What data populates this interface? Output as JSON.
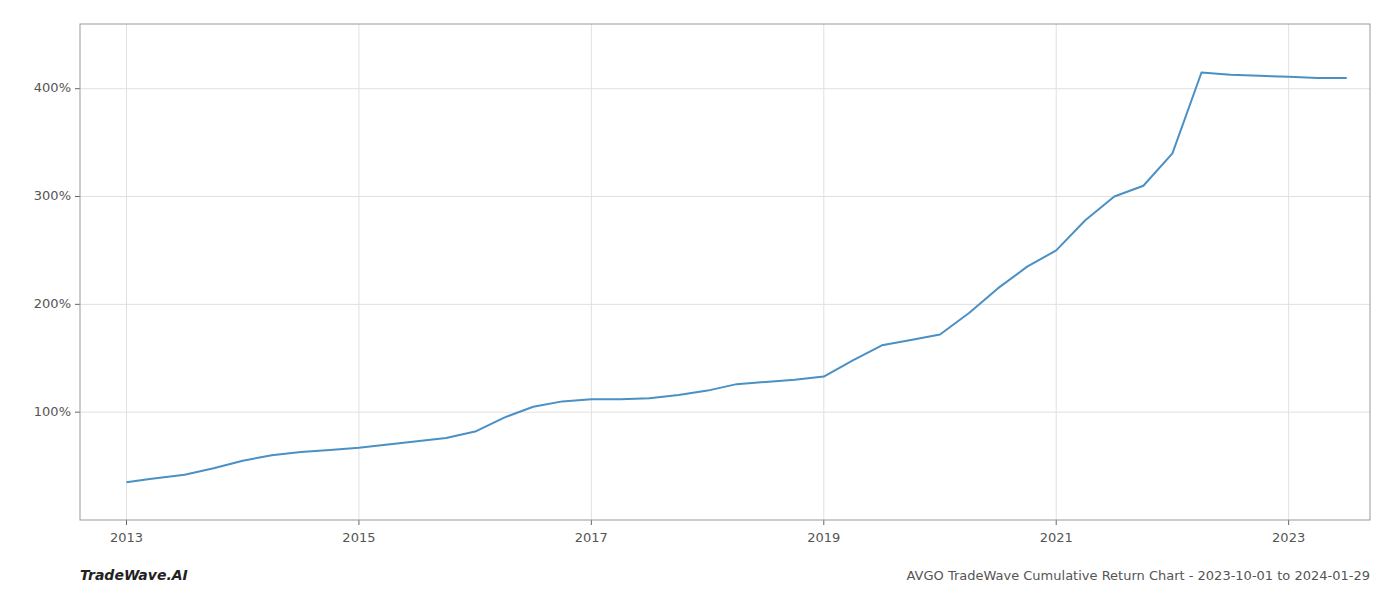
{
  "chart_data": {
    "type": "line",
    "title": "AVGO TradeWave Cumulative Return Chart - 2023-10-01 to 2024-01-29",
    "annotations": [
      "TradeWave.AI"
    ],
    "color": "#4a90c4",
    "grid": true,
    "x": [
      2013.0,
      2013.2,
      2013.5,
      2013.75,
      2014.0,
      2014.25,
      2014.5,
      2014.75,
      2015.0,
      2015.25,
      2015.5,
      2015.75,
      2016.0,
      2016.25,
      2016.5,
      2016.75,
      2017.0,
      2017.25,
      2017.5,
      2017.75,
      2018.0,
      2018.25,
      2018.5,
      2018.75,
      2019.0,
      2019.25,
      2019.5,
      2019.75,
      2020.0,
      2020.25,
      2020.5,
      2020.75,
      2021.0,
      2021.25,
      2021.5,
      2021.75,
      2022.0,
      2022.25,
      2022.5,
      2022.75,
      2023.0,
      2023.25,
      2023.5
    ],
    "values": [
      35,
      38,
      42,
      48,
      55,
      60,
      63,
      65,
      67,
      70,
      73,
      76,
      82,
      95,
      105,
      110,
      112,
      112,
      113,
      116,
      120,
      126,
      128,
      130,
      133,
      148,
      162,
      167,
      172,
      192,
      215,
      235,
      250,
      278,
      300,
      310,
      340,
      415,
      413,
      412,
      411,
      410,
      410
    ],
    "xlim": [
      2012.6,
      2023.7
    ],
    "ylim": [
      0,
      460
    ],
    "xticks": [
      2013,
      2015,
      2017,
      2019,
      2021,
      2023
    ],
    "yticks": [
      {
        "value": 100,
        "label": "100%"
      },
      {
        "value": 200,
        "label": "200%"
      },
      {
        "value": 300,
        "label": "300%"
      },
      {
        "value": 400,
        "label": "400%"
      }
    ]
  }
}
